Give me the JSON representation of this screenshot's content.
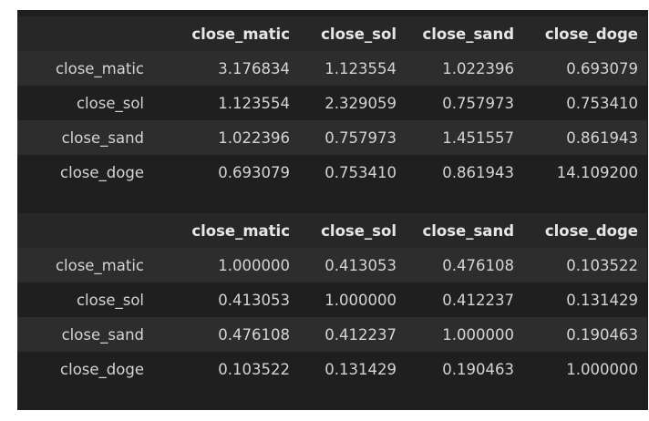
{
  "tables": [
    {
      "columns": [
        "",
        "close_matic",
        "close_sol",
        "close_sand",
        "close_doge"
      ],
      "rows": [
        {
          "label": "close_matic",
          "values": [
            "3.176834",
            "1.123554",
            "1.022396",
            "0.693079"
          ]
        },
        {
          "label": "close_sol",
          "values": [
            "1.123554",
            "2.329059",
            "0.757973",
            "0.753410"
          ]
        },
        {
          "label": "close_sand",
          "values": [
            "1.022396",
            "0.757973",
            "1.451557",
            "0.861943"
          ]
        },
        {
          "label": "close_doge",
          "values": [
            "0.693079",
            "0.753410",
            "0.861943",
            "14.109200"
          ]
        }
      ]
    },
    {
      "columns": [
        "",
        "close_matic",
        "close_sol",
        "close_sand",
        "close_doge"
      ],
      "rows": [
        {
          "label": "close_matic",
          "values": [
            "1.000000",
            "0.413053",
            "0.476108",
            "0.103522"
          ]
        },
        {
          "label": "close_sol",
          "values": [
            "0.413053",
            "1.000000",
            "0.412237",
            "0.131429"
          ]
        },
        {
          "label": "close_sand",
          "values": [
            "0.476108",
            "0.412237",
            "1.000000",
            "0.190463"
          ]
        },
        {
          "label": "close_doge",
          "values": [
            "0.103522",
            "0.131429",
            "0.190463",
            "1.000000"
          ]
        }
      ]
    }
  ]
}
